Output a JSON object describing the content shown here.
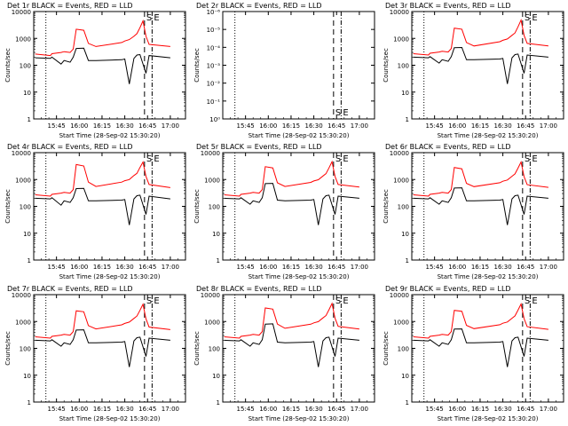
{
  "chart_data": [
    {
      "type": "line",
      "title": "Det 1r BLACK = Events, RED = LLD",
      "ylabel": "Counts/sec",
      "xlabel": "Start Time (28-Sep-02 15:30:20)",
      "yscale": "log",
      "ylim": [
        1,
        10000
      ],
      "yticks": [
        "1",
        "10",
        "100",
        "1000",
        "10000"
      ],
      "xticks": [
        "15:45",
        "16:00",
        "16:15",
        "16:30",
        "16:45",
        "17:00"
      ],
      "markers": [
        "S",
        "E"
      ],
      "series": [
        {
          "color": "#000000",
          "x": [
            "15:31",
            "15:41",
            "15:42",
            "15:48",
            "15:50",
            "15:54",
            "15:56",
            "15:58",
            "16:03",
            "16:06",
            "16:11",
            "16:28",
            "16:30",
            "16:33",
            "16:36",
            "16:38",
            "16:40",
            "16:44",
            "16:46",
            "17:00"
          ],
          "y": [
            190,
            180,
            200,
            110,
            150,
            130,
            200,
            420,
            430,
            150,
            150,
            160,
            170,
            20,
            180,
            240,
            250,
            50,
            230,
            190
          ]
        },
        {
          "color": "#ff0000",
          "x": [
            "15:31",
            "15:41",
            "15:42",
            "15:48",
            "15:50",
            "15:54",
            "15:56",
            "15:58",
            "16:03",
            "16:06",
            "16:11",
            "16:28",
            "16:30",
            "16:33",
            "16:36",
            "16:38",
            "16:40",
            "16:42",
            "16:44",
            "16:46",
            "17:00"
          ],
          "y": [
            260,
            230,
            270,
            300,
            320,
            300,
            400,
            2200,
            2000,
            650,
            500,
            700,
            800,
            900,
            1200,
            1500,
            2500,
            4500,
            1200,
            600,
            500
          ]
        }
      ]
    },
    {
      "type": "line",
      "title": "Det 2r BLACK = Events, RED = LLD",
      "ylabel": "Counts/sec",
      "xlabel": "Start Time (28-Sep-02 15:30:20)",
      "yscale": "log",
      "ylim": [
        1,
        1e-06
      ],
      "yticks": [
        "10⁰",
        "10⁻¹",
        "10⁻²",
        "10⁻³",
        "10⁻⁴",
        "10⁻⁵",
        "10⁻⁶"
      ],
      "xticks": [
        "15:45",
        "16:00",
        "16:15",
        "16:30",
        "16:45",
        "17:00"
      ],
      "markers": [
        "S",
        "E"
      ],
      "series": []
    },
    {
      "type": "line",
      "title": "Det 3r BLACK = Events, RED = LLD",
      "ylabel": "Counts/sec",
      "xlabel": "Start Time (28-Sep-02 15:30:20)",
      "yscale": "log",
      "ylim": [
        1,
        10000
      ],
      "yticks": [
        "1",
        "10",
        "100",
        "1000",
        "10000"
      ],
      "xticks": [
        "15:45",
        "16:00",
        "16:15",
        "16:30",
        "16:45",
        "17:00"
      ],
      "markers": [
        "S",
        "E"
      ],
      "series": [
        {
          "color": "#000000",
          "x": [
            "15:31",
            "15:41",
            "15:42",
            "15:48",
            "15:50",
            "15:54",
            "15:56",
            "15:58",
            "16:03",
            "16:06",
            "16:11",
            "16:28",
            "16:30",
            "16:33",
            "16:36",
            "16:38",
            "16:40",
            "16:44",
            "16:46",
            "17:00"
          ],
          "y": [
            200,
            190,
            210,
            120,
            160,
            140,
            210,
            450,
            460,
            160,
            160,
            170,
            180,
            20,
            190,
            250,
            260,
            50,
            240,
            200
          ]
        },
        {
          "color": "#ff0000",
          "x": [
            "15:31",
            "15:41",
            "15:42",
            "15:48",
            "15:50",
            "15:54",
            "15:56",
            "15:58",
            "16:03",
            "16:06",
            "16:11",
            "16:28",
            "16:30",
            "16:33",
            "16:36",
            "16:38",
            "16:40",
            "16:42",
            "16:44",
            "16:46",
            "17:00"
          ],
          "y": [
            270,
            240,
            280,
            310,
            330,
            310,
            420,
            2400,
            2200,
            700,
            520,
            750,
            850,
            950,
            1300,
            1600,
            2700,
            4800,
            1300,
            650,
            520
          ]
        }
      ]
    },
    {
      "type": "line",
      "title": "Det 4r BLACK = Events, RED = LLD",
      "ylabel": "Counts/sec",
      "xlabel": "Start Time (28-Sep-02 15:30:20)",
      "yscale": "log",
      "ylim": [
        1,
        10000
      ],
      "yticks": [
        "1",
        "10",
        "100",
        "1000",
        "10000"
      ],
      "xticks": [
        "15:45",
        "16:00",
        "16:15",
        "16:30",
        "16:45",
        "17:00"
      ],
      "markers": [
        "S",
        "E"
      ],
      "series": [
        {
          "color": "#000000",
          "x": [
            "15:31",
            "15:41",
            "15:42",
            "15:48",
            "15:50",
            "15:54",
            "15:56",
            "15:58",
            "16:03",
            "16:06",
            "16:11",
            "16:28",
            "16:30",
            "16:33",
            "16:36",
            "16:38",
            "16:40",
            "16:44",
            "16:46",
            "17:00"
          ],
          "y": [
            200,
            190,
            210,
            110,
            160,
            140,
            210,
            460,
            470,
            160,
            160,
            170,
            180,
            20,
            190,
            250,
            260,
            50,
            240,
            190
          ]
        },
        {
          "color": "#ff0000",
          "x": [
            "15:31",
            "15:41",
            "15:42",
            "15:48",
            "15:50",
            "15:54",
            "15:56",
            "15:58",
            "16:03",
            "16:06",
            "16:11",
            "16:28",
            "16:30",
            "16:33",
            "16:36",
            "16:38",
            "16:40",
            "16:42",
            "16:44",
            "16:46",
            "17:00"
          ],
          "y": [
            270,
            240,
            280,
            310,
            330,
            310,
            420,
            3600,
            3200,
            800,
            550,
            800,
            900,
            1000,
            1400,
            1700,
            2800,
            4500,
            1300,
            650,
            500
          ]
        }
      ]
    },
    {
      "type": "line",
      "title": "Det 5r BLACK = Events, RED = LLD",
      "ylabel": "Counts/sec",
      "xlabel": "Start Time (28-Sep-02 15:30:20)",
      "yscale": "log",
      "ylim": [
        1,
        10000
      ],
      "yticks": [
        "1",
        "10",
        "100",
        "1000",
        "10000"
      ],
      "xticks": [
        "15:45",
        "16:00",
        "16:15",
        "16:30",
        "16:45",
        "17:00"
      ],
      "markers": [
        "S",
        "E"
      ],
      "series": [
        {
          "color": "#000000",
          "x": [
            "15:31",
            "15:41",
            "15:42",
            "15:48",
            "15:50",
            "15:54",
            "15:56",
            "15:58",
            "16:03",
            "16:06",
            "16:11",
            "16:28",
            "16:30",
            "16:33",
            "16:36",
            "16:38",
            "16:40",
            "16:44",
            "16:46",
            "17:00"
          ],
          "y": [
            200,
            190,
            210,
            120,
            160,
            140,
            210,
            700,
            720,
            170,
            160,
            170,
            180,
            20,
            190,
            250,
            260,
            50,
            240,
            200
          ]
        },
        {
          "color": "#ff0000",
          "x": [
            "15:31",
            "15:41",
            "15:42",
            "15:48",
            "15:50",
            "15:54",
            "15:56",
            "15:58",
            "16:03",
            "16:06",
            "16:11",
            "16:28",
            "16:30",
            "16:33",
            "16:36",
            "16:38",
            "16:40",
            "16:42",
            "16:44",
            "16:46",
            "17:00"
          ],
          "y": [
            270,
            240,
            280,
            310,
            330,
            310,
            420,
            3000,
            2700,
            750,
            550,
            780,
            880,
            980,
            1350,
            1650,
            2700,
            4600,
            1300,
            650,
            520
          ]
        }
      ]
    },
    {
      "type": "line",
      "title": "Det 6r BLACK = Events, RED = LLD",
      "ylabel": "Counts/sec",
      "xlabel": "Start Time (28-Sep-02 15:30:20)",
      "yscale": "log",
      "ylim": [
        1,
        10000
      ],
      "yticks": [
        "1",
        "10",
        "100",
        "1000",
        "10000"
      ],
      "xticks": [
        "15:45",
        "16:00",
        "16:15",
        "16:30",
        "16:45",
        "17:00"
      ],
      "markers": [
        "S",
        "E"
      ],
      "series": [
        {
          "color": "#000000",
          "x": [
            "15:31",
            "15:41",
            "15:42",
            "15:48",
            "15:50",
            "15:54",
            "15:56",
            "15:58",
            "16:03",
            "16:06",
            "16:11",
            "16:28",
            "16:30",
            "16:33",
            "16:36",
            "16:38",
            "16:40",
            "16:44",
            "16:46",
            "17:00"
          ],
          "y": [
            200,
            190,
            210,
            120,
            160,
            140,
            210,
            480,
            490,
            160,
            160,
            170,
            180,
            20,
            190,
            250,
            260,
            50,
            240,
            200
          ]
        },
        {
          "color": "#ff0000",
          "x": [
            "15:31",
            "15:41",
            "15:42",
            "15:48",
            "15:50",
            "15:54",
            "15:56",
            "15:58",
            "16:03",
            "16:06",
            "16:11",
            "16:28",
            "16:30",
            "16:33",
            "16:36",
            "16:38",
            "16:40",
            "16:42",
            "16:44",
            "16:46",
            "17:00"
          ],
          "y": [
            270,
            240,
            280,
            310,
            330,
            310,
            420,
            2800,
            2500,
            720,
            540,
            760,
            860,
            960,
            1320,
            1620,
            2650,
            4500,
            1280,
            640,
            510
          ]
        }
      ]
    },
    {
      "type": "line",
      "title": "Det 7r BLACK = Events, RED = LLD",
      "ylabel": "Counts/sec",
      "xlabel": "Start Time (28-Sep-02 15:30:20)",
      "yscale": "log",
      "ylim": [
        1,
        10000
      ],
      "yticks": [
        "1",
        "10",
        "100",
        "1000",
        "10000"
      ],
      "xticks": [
        "15:45",
        "16:00",
        "16:15",
        "16:30",
        "16:45",
        "17:00"
      ],
      "markers": [
        "S",
        "E"
      ],
      "series": [
        {
          "color": "#000000",
          "x": [
            "15:31",
            "15:41",
            "15:42",
            "15:48",
            "15:50",
            "15:54",
            "15:56",
            "15:58",
            "16:03",
            "16:06",
            "16:11",
            "16:28",
            "16:30",
            "16:33",
            "16:36",
            "16:38",
            "16:40",
            "16:44",
            "16:46",
            "17:00"
          ],
          "y": [
            200,
            190,
            210,
            120,
            160,
            140,
            210,
            480,
            490,
            160,
            160,
            170,
            180,
            20,
            190,
            250,
            260,
            50,
            240,
            200
          ]
        },
        {
          "color": "#ff0000",
          "x": [
            "15:31",
            "15:41",
            "15:42",
            "15:48",
            "15:50",
            "15:54",
            "15:56",
            "15:58",
            "16:03",
            "16:06",
            "16:11",
            "16:28",
            "16:30",
            "16:33",
            "16:36",
            "16:38",
            "16:40",
            "16:42",
            "16:44",
            "16:46",
            "17:00"
          ],
          "y": [
            270,
            240,
            280,
            310,
            330,
            310,
            420,
            2500,
            2300,
            700,
            530,
            750,
            850,
            950,
            1300,
            1600,
            2600,
            4400,
            1250,
            620,
            500
          ]
        }
      ]
    },
    {
      "type": "line",
      "title": "Det 8r BLACK = Events, RED = LLD",
      "ylabel": "Counts/sec",
      "xlabel": "Start Time (28-Sep-02 15:30:20)",
      "yscale": "log",
      "ylim": [
        1,
        10000
      ],
      "yticks": [
        "1",
        "10",
        "100",
        "1000",
        "10000"
      ],
      "xticks": [
        "15:45",
        "16:00",
        "16:15",
        "16:30",
        "16:45",
        "17:00"
      ],
      "markers": [
        "S",
        "E"
      ],
      "series": [
        {
          "color": "#000000",
          "x": [
            "15:31",
            "15:41",
            "15:42",
            "15:48",
            "15:50",
            "15:54",
            "15:56",
            "15:58",
            "16:03",
            "16:06",
            "16:11",
            "16:28",
            "16:30",
            "16:33",
            "16:36",
            "16:38",
            "16:40",
            "16:44",
            "16:46",
            "17:00"
          ],
          "y": [
            200,
            190,
            210,
            120,
            160,
            140,
            210,
            800,
            820,
            170,
            160,
            170,
            180,
            20,
            190,
            250,
            260,
            50,
            240,
            200
          ]
        },
        {
          "color": "#ff0000",
          "x": [
            "15:31",
            "15:41",
            "15:42",
            "15:48",
            "15:50",
            "15:54",
            "15:56",
            "15:58",
            "16:03",
            "16:06",
            "16:11",
            "16:28",
            "16:30",
            "16:33",
            "16:36",
            "16:38",
            "16:40",
            "16:42",
            "16:44",
            "16:46",
            "17:00"
          ],
          "y": [
            270,
            240,
            280,
            310,
            330,
            310,
            420,
            3200,
            2900,
            800,
            560,
            790,
            890,
            990,
            1360,
            1660,
            2750,
            4700,
            1320,
            660,
            520
          ]
        }
      ]
    },
    {
      "type": "line",
      "title": "Det 9r BLACK = Events, RED = LLD",
      "ylabel": "Counts/sec",
      "xlabel": "Start Time (28-Sep-02 15:30:20)",
      "yscale": "log",
      "ylim": [
        1,
        10000
      ],
      "yticks": [
        "1",
        "10",
        "100",
        "1000",
        "10000"
      ],
      "xticks": [
        "15:45",
        "16:00",
        "16:15",
        "16:30",
        "16:45",
        "17:00"
      ],
      "markers": [
        "S",
        "E"
      ],
      "series": [
        {
          "color": "#000000",
          "x": [
            "15:31",
            "15:41",
            "15:42",
            "15:48",
            "15:50",
            "15:54",
            "15:56",
            "15:58",
            "16:03",
            "16:06",
            "16:11",
            "16:28",
            "16:30",
            "16:33",
            "16:36",
            "16:38",
            "16:40",
            "16:44",
            "16:46",
            "17:00"
          ],
          "y": [
            200,
            190,
            210,
            120,
            160,
            140,
            210,
            520,
            530,
            160,
            160,
            170,
            180,
            20,
            190,
            250,
            260,
            50,
            240,
            200
          ]
        },
        {
          "color": "#ff0000",
          "x": [
            "15:31",
            "15:41",
            "15:42",
            "15:48",
            "15:50",
            "15:54",
            "15:56",
            "15:58",
            "16:03",
            "16:06",
            "16:11",
            "16:28",
            "16:30",
            "16:33",
            "16:36",
            "16:38",
            "16:40",
            "16:42",
            "16:44",
            "16:46",
            "17:00"
          ],
          "y": [
            270,
            240,
            280,
            310,
            330,
            310,
            420,
            2600,
            2400,
            720,
            540,
            760,
            860,
            960,
            1320,
            1620,
            2650,
            4500,
            1280,
            640,
            510
          ]
        }
      ]
    }
  ],
  "time_axis": {
    "start": "15:30",
    "end": "17:10",
    "dotted_line": "15:38",
    "dashed_lines": [
      "16:43",
      "16:48"
    ]
  }
}
